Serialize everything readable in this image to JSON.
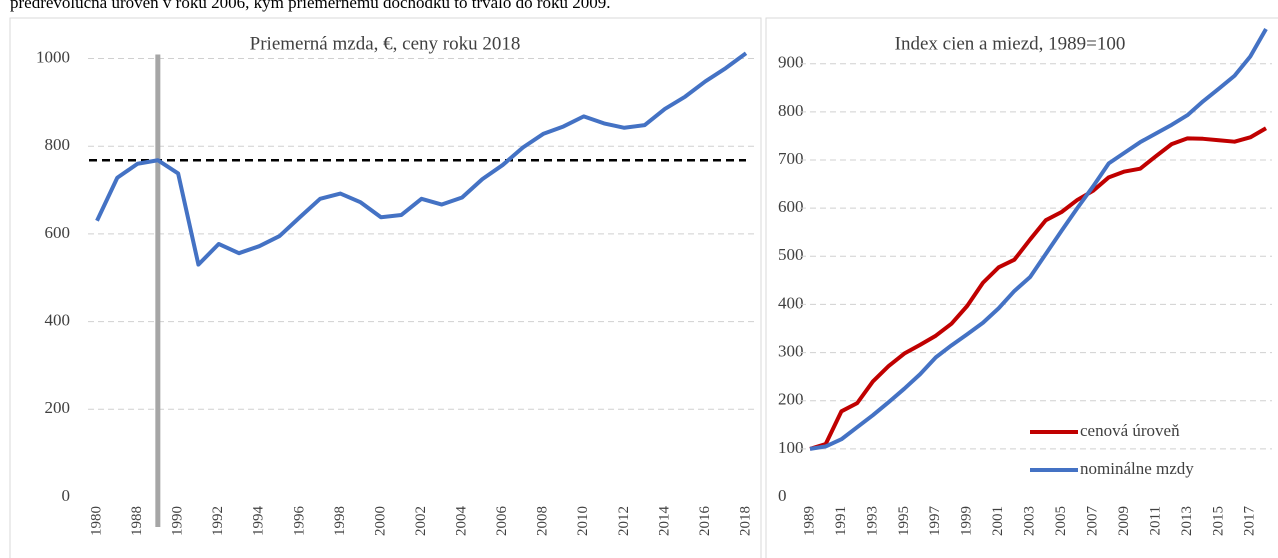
{
  "caption": "predrevolučná úroveň v roku 2006, kým priemernému dôchodku to trvalo do roku 2009.",
  "chart_data": [
    {
      "type": "line",
      "title": "Priemerná mzda, €, ceny roku 2018",
      "categories": [
        "1980",
        null,
        "1988",
        null,
        "1990",
        null,
        "1992",
        null,
        "1994",
        null,
        "1996",
        null,
        "1998",
        null,
        "2000",
        null,
        "2002",
        null,
        "2004",
        null,
        "2006",
        null,
        "2008",
        null,
        "2010",
        null,
        "2012",
        null,
        "2014",
        null,
        "2016",
        null,
        "2018"
      ],
      "series": [
        {
          "name": "Priemerná mzda",
          "color": "#4472c4",
          "values": [
            630,
            728,
            760,
            768,
            738,
            530,
            577,
            556,
            572,
            595,
            638,
            680,
            692,
            672,
            638,
            643,
            680,
            667,
            683,
            725,
            757,
            797,
            828,
            845,
            868,
            852,
            842,
            848,
            885,
            913,
            948,
            978,
            1012
          ]
        }
      ],
      "reference_line": {
        "value": 768,
        "color": "#000000"
      },
      "highlight_category": {
        "index": 3,
        "color": "#a6a6a6"
      },
      "ylim": [
        0,
        1065
      ],
      "yticks": [
        0,
        200,
        400,
        600,
        800,
        1000
      ],
      "grid": true
    },
    {
      "type": "line",
      "title": "Index cien a miezd, 1989=100",
      "categories": [
        "1989",
        null,
        "1991",
        null,
        "1993",
        null,
        "1995",
        null,
        "1997",
        null,
        "1999",
        null,
        "2001",
        null,
        "2003",
        null,
        "2005",
        null,
        "2007",
        null,
        "2009",
        null,
        "2011",
        null,
        "2013",
        null,
        "2015",
        null,
        "2017",
        null
      ],
      "series": [
        {
          "name": "cenová úroveň",
          "color": "#c00000",
          "values": [
            100,
            110,
            178,
            195,
            240,
            272,
            298,
            316,
            335,
            360,
            397,
            445,
            477,
            493,
            535,
            575,
            592,
            617,
            636,
            664,
            676,
            682,
            708,
            733,
            745,
            744,
            741,
            738,
            747,
            766
          ]
        },
        {
          "name": "nominálne mzdy",
          "color": "#4472c4",
          "values": [
            100,
            105,
            120,
            145,
            170,
            197,
            225,
            255,
            290,
            315,
            338,
            362,
            392,
            428,
            457,
            505,
            553,
            600,
            645,
            693,
            715,
            737,
            755,
            773,
            793,
            822,
            848,
            875,
            915,
            972
          ]
        }
      ],
      "ylim": [
        0,
        970
      ],
      "yticks": [
        0,
        100,
        200,
        300,
        400,
        500,
        600,
        700,
        800,
        900
      ],
      "grid": true,
      "legend": "lower right"
    }
  ]
}
